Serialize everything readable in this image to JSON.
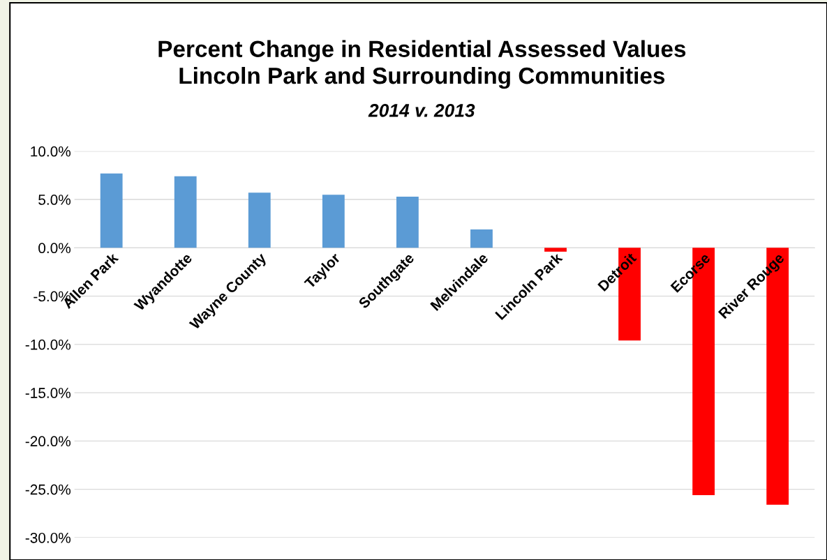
{
  "chart_data": {
    "type": "bar",
    "title": "Percent Change in Residential Assessed Values\nLincoln Park and Surrounding Communities",
    "subtitle": "2014 v. 2013",
    "categories": [
      "Allen Park",
      "Wyandotte",
      "Wayne County",
      "Taylor",
      "Southgate",
      "Melvindale",
      "Lincoln Park",
      "Detroit",
      "Ecorse",
      "River Rouge"
    ],
    "values": [
      7.7,
      7.4,
      5.7,
      5.5,
      5.3,
      1.9,
      -0.4,
      -9.6,
      -25.6,
      -26.6
    ],
    "colors": [
      "#5b9bd5",
      "#5b9bd5",
      "#5b9bd5",
      "#5b9bd5",
      "#5b9bd5",
      "#5b9bd5",
      "#ff0000",
      "#ff0000",
      "#ff0000",
      "#ff0000"
    ],
    "ylim": [
      -30,
      10
    ],
    "yticks": [
      {
        "value": 10,
        "label": "10.0%"
      },
      {
        "value": 5,
        "label": "5.0%"
      },
      {
        "value": 0,
        "label": "0.0%"
      },
      {
        "value": -5,
        "label": "-5.0%"
      },
      {
        "value": -10,
        "label": "-10.0%"
      },
      {
        "value": -15,
        "label": "-15.0%"
      },
      {
        "value": -20,
        "label": "-20.0%"
      },
      {
        "value": -25,
        "label": "-25.0%"
      },
      {
        "value": -30,
        "label": "-30.0%"
      }
    ],
    "grid": "y"
  }
}
